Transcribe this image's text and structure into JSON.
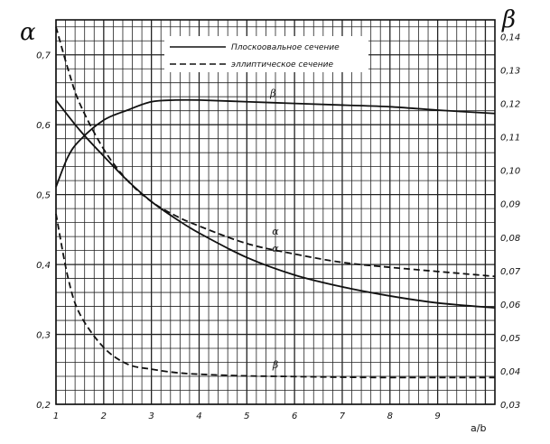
{
  "chart_data": {
    "type": "line",
    "xlabel": "a/b",
    "left_axis": {
      "symbol": "α",
      "ylim": [
        0.2,
        0.75
      ],
      "ticks": [
        "0,2",
        "0,3",
        "0,4",
        "0,5",
        "0,6",
        "0,7"
      ]
    },
    "right_axis": {
      "symbol": "β",
      "ylim": [
        0.03,
        0.145
      ],
      "ticks": [
        "0,03",
        "0,04",
        "0,05",
        "0,06",
        "0,07",
        "0,08",
        "0,09",
        "0,10",
        "0,11",
        "0,12",
        "0,13",
        "0,14"
      ]
    },
    "xlim": [
      1,
      10.2
    ],
    "x_ticks": [
      "1",
      "2",
      "3",
      "4",
      "5",
      "6",
      "7",
      "8",
      "9"
    ],
    "grid": true,
    "legend": {
      "placement": "top-center",
      "entries": [
        {
          "label": "Плоскоовальное сечение",
          "style": "solid"
        },
        {
          "label": "эллиптическое сечение",
          "style": "dashed"
        }
      ]
    },
    "series": [
      {
        "name": "α",
        "axis": "left",
        "style": "solid",
        "x": [
          1,
          1.5,
          2,
          2.5,
          3,
          3.5,
          4,
          5,
          6,
          7,
          8,
          9,
          10.2
        ],
        "y": [
          0.635,
          0.592,
          0.555,
          0.52,
          0.49,
          0.466,
          0.445,
          0.41,
          0.385,
          0.368,
          0.355,
          0.345,
          0.338
        ]
      },
      {
        "name": "α",
        "axis": "left",
        "style": "dashed",
        "x": [
          1,
          1.25,
          1.5,
          2,
          2.5,
          3,
          3.5,
          4,
          5,
          6,
          7,
          8,
          9,
          10.2
        ],
        "y": [
          0.74,
          0.68,
          0.63,
          0.565,
          0.52,
          0.49,
          0.47,
          0.455,
          0.43,
          0.415,
          0.403,
          0.396,
          0.39,
          0.383
        ]
      },
      {
        "name": "β",
        "axis": "right",
        "style": "solid",
        "x": [
          1,
          1.25,
          1.5,
          2,
          2.5,
          3,
          3.5,
          4,
          5,
          6,
          7,
          8,
          9,
          10.2
        ],
        "y": [
          0.095,
          0.104,
          0.109,
          0.115,
          0.118,
          0.1205,
          0.121,
          0.121,
          0.1205,
          0.12,
          0.1195,
          0.119,
          0.118,
          0.117
        ]
      },
      {
        "name": "β",
        "axis": "right",
        "style": "dashed",
        "x": [
          1,
          1.25,
          1.5,
          2,
          2.5,
          3,
          3.5,
          4,
          5,
          6,
          7,
          8,
          9,
          10.2
        ],
        "y": [
          0.087,
          0.068,
          0.057,
          0.047,
          0.042,
          0.0405,
          0.0395,
          0.039,
          0.0385,
          0.0383,
          0.0381,
          0.038,
          0.038,
          0.038
        ]
      }
    ],
    "curve_labels": [
      {
        "text": "β",
        "axis": "right",
        "x": 5.55,
        "y": 0.122
      },
      {
        "text": "α",
        "axis": "left",
        "x": 5.6,
        "y": 0.443
      },
      {
        "text": "α",
        "axis": "left",
        "x": 5.6,
        "y": 0.418
      },
      {
        "text": "β",
        "axis": "right",
        "x": 5.6,
        "y": 0.0408
      }
    ]
  }
}
